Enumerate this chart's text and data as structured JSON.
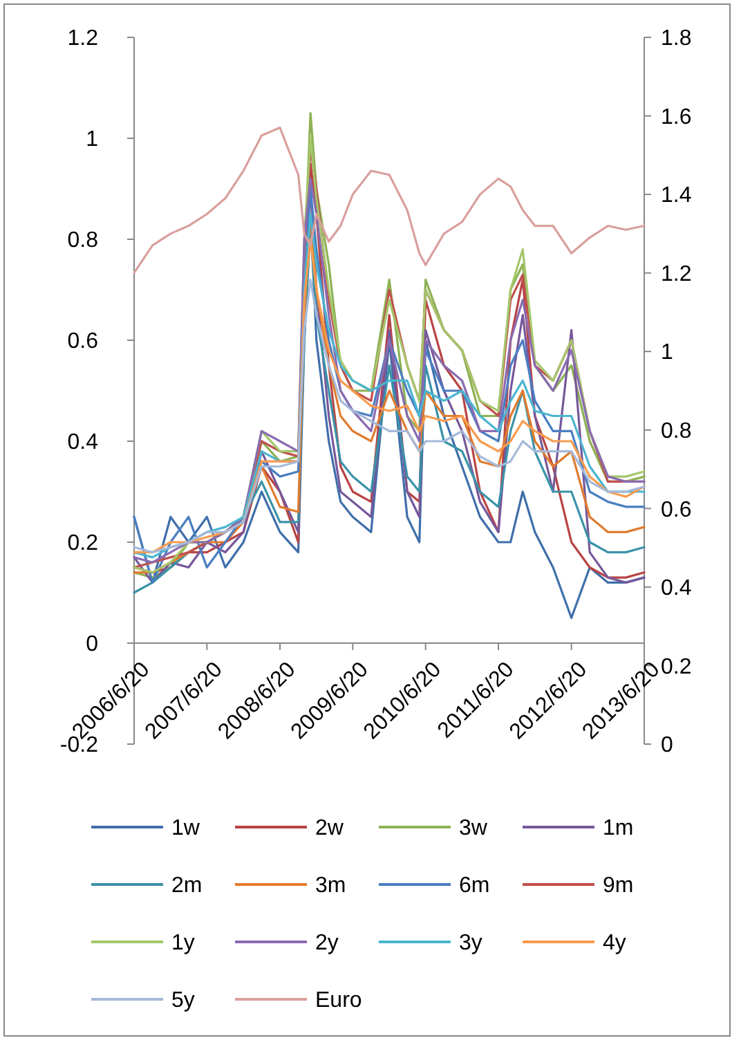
{
  "chart_data": {
    "type": "line",
    "legend": "bottom",
    "x": [
      "2006-06-20",
      "2006-09-20",
      "2006-12-20",
      "2007-03-20",
      "2007-06-20",
      "2007-09-20",
      "2007-12-20",
      "2008-03-20",
      "2008-06-20",
      "2008-09-20",
      "2008-10-20",
      "2008-11-20",
      "2008-12-20",
      "2009-02-20",
      "2009-04-20",
      "2009-06-20",
      "2009-09-20",
      "2009-12-20",
      "2010-03-20",
      "2010-05-20",
      "2010-06-20",
      "2010-09-20",
      "2010-12-20",
      "2011-03-20",
      "2011-06-20",
      "2011-08-20",
      "2011-10-20",
      "2011-12-20",
      "2012-03-20",
      "2012-06-20",
      "2012-09-20",
      "2012-12-20",
      "2013-03-20",
      "2013-06-20"
    ],
    "xlim": [
      "2006-06-20",
      "2013-06-20"
    ],
    "xticks": [
      {
        "value": "2006-06-20",
        "label": "2006/6/20"
      },
      {
        "value": "2007-06-20",
        "label": "2007/6/20"
      },
      {
        "value": "2008-06-20",
        "label": "2008/6/20"
      },
      {
        "value": "2009-06-20",
        "label": "2009/6/20"
      },
      {
        "value": "2010-06-20",
        "label": "2010/6/20"
      },
      {
        "value": "2011-06-20",
        "label": "2011/6/20"
      },
      {
        "value": "2012-06-20",
        "label": "2012/6/20"
      },
      {
        "value": "2013-06-20",
        "label": "2013/6/20"
      }
    ],
    "ylim": [
      -0.2,
      1.2
    ],
    "yticks": [
      -0.2,
      0,
      0.2,
      0.4,
      0.6,
      0.8,
      1,
      1.2
    ],
    "y2lim": [
      0,
      1.8
    ],
    "y2ticks": [
      0,
      0.2,
      0.4,
      0.6,
      0.8,
      1,
      1.2,
      1.4,
      1.6,
      1.8
    ],
    "series": [
      {
        "name": "1w",
        "color": "#3f6faa",
        "values": [
          0.25,
          0.12,
          0.25,
          0.2,
          0.25,
          0.15,
          0.2,
          0.3,
          0.22,
          0.18,
          0.6,
          0.85,
          0.6,
          0.4,
          0.28,
          0.25,
          0.22,
          0.6,
          0.25,
          0.2,
          0.6,
          0.45,
          0.35,
          0.25,
          0.2,
          0.2,
          0.3,
          0.22,
          0.15,
          0.05,
          0.15,
          0.12,
          0.12,
          0.13
        ]
      },
      {
        "name": "2w",
        "color": "#b84444",
        "values": [
          0.15,
          0.14,
          0.15,
          0.18,
          0.18,
          0.2,
          0.22,
          0.35,
          0.3,
          0.2,
          0.7,
          0.95,
          0.85,
          0.55,
          0.35,
          0.3,
          0.28,
          0.65,
          0.3,
          0.28,
          0.68,
          0.55,
          0.5,
          0.3,
          0.22,
          0.6,
          0.72,
          0.45,
          0.35,
          0.2,
          0.15,
          0.13,
          0.13,
          0.14
        ]
      },
      {
        "name": "3w",
        "color": "#8db255",
        "values": [
          0.14,
          0.13,
          0.15,
          0.2,
          0.2,
          0.22,
          0.25,
          0.4,
          0.36,
          0.37,
          0.75,
          1.05,
          0.9,
          0.75,
          0.55,
          0.5,
          0.5,
          0.72,
          0.45,
          0.42,
          0.72,
          0.62,
          0.58,
          0.45,
          0.45,
          0.7,
          0.75,
          0.55,
          0.5,
          0.55,
          0.4,
          0.32,
          0.32,
          0.33
        ]
      },
      {
        "name": "1m",
        "color": "#76589a",
        "values": [
          0.17,
          0.12,
          0.16,
          0.15,
          0.2,
          0.18,
          0.22,
          0.38,
          0.3,
          0.22,
          0.72,
          0.9,
          0.7,
          0.45,
          0.3,
          0.28,
          0.25,
          0.62,
          0.3,
          0.25,
          0.62,
          0.5,
          0.42,
          0.28,
          0.22,
          0.5,
          0.65,
          0.45,
          0.3,
          0.62,
          0.18,
          0.13,
          0.12,
          0.13
        ]
      },
      {
        "name": "2m",
        "color": "#3a92a8",
        "values": [
          0.1,
          0.12,
          0.15,
          0.18,
          0.2,
          0.22,
          0.25,
          0.32,
          0.24,
          0.24,
          0.6,
          0.82,
          0.65,
          0.5,
          0.36,
          0.33,
          0.3,
          0.55,
          0.33,
          0.3,
          0.55,
          0.4,
          0.38,
          0.3,
          0.27,
          0.42,
          0.5,
          0.38,
          0.3,
          0.3,
          0.2,
          0.18,
          0.18,
          0.19
        ]
      },
      {
        "name": "3m",
        "color": "#e07b2e",
        "values": [
          0.14,
          0.14,
          0.16,
          0.18,
          0.2,
          0.2,
          0.24,
          0.35,
          0.27,
          0.26,
          0.65,
          0.85,
          0.7,
          0.55,
          0.45,
          0.42,
          0.4,
          0.5,
          0.42,
          0.38,
          0.5,
          0.45,
          0.45,
          0.36,
          0.35,
          0.45,
          0.5,
          0.4,
          0.35,
          0.38,
          0.25,
          0.22,
          0.22,
          0.23
        ]
      },
      {
        "name": "6m",
        "color": "#4a7ec0",
        "values": [
          0.25,
          0.12,
          0.2,
          0.25,
          0.15,
          0.2,
          0.25,
          0.36,
          0.33,
          0.34,
          0.72,
          0.9,
          0.78,
          0.6,
          0.5,
          0.46,
          0.45,
          0.6,
          0.5,
          0.45,
          0.58,
          0.5,
          0.5,
          0.42,
          0.4,
          0.55,
          0.6,
          0.48,
          0.42,
          0.42,
          0.3,
          0.28,
          0.27,
          0.27
        ]
      },
      {
        "name": "9m",
        "color": "#c0504d",
        "values": [
          0.15,
          0.16,
          0.17,
          0.18,
          0.2,
          0.22,
          0.25,
          0.4,
          0.38,
          0.37,
          0.78,
          0.98,
          0.9,
          0.68,
          0.55,
          0.5,
          0.48,
          0.7,
          0.55,
          0.48,
          0.7,
          0.62,
          0.58,
          0.48,
          0.45,
          0.68,
          0.73,
          0.55,
          0.52,
          0.6,
          0.42,
          0.32,
          0.32,
          0.32
        ]
      },
      {
        "name": "1y",
        "color": "#a5c66b",
        "values": [
          0.15,
          0.14,
          0.16,
          0.2,
          0.2,
          0.22,
          0.25,
          0.42,
          0.38,
          0.38,
          0.8,
          1.0,
          0.88,
          0.7,
          0.56,
          0.52,
          0.5,
          0.68,
          0.55,
          0.48,
          0.7,
          0.62,
          0.58,
          0.48,
          0.46,
          0.7,
          0.78,
          0.56,
          0.52,
          0.6,
          0.42,
          0.33,
          0.33,
          0.34
        ]
      },
      {
        "name": "2y",
        "color": "#8a6bb0",
        "values": [
          0.17,
          0.16,
          0.18,
          0.2,
          0.2,
          0.22,
          0.25,
          0.42,
          0.4,
          0.38,
          0.8,
          0.92,
          0.85,
          0.65,
          0.5,
          0.46,
          0.42,
          0.6,
          0.45,
          0.4,
          0.6,
          0.55,
          0.52,
          0.42,
          0.42,
          0.6,
          0.68,
          0.55,
          0.5,
          0.58,
          0.42,
          0.33,
          0.32,
          0.32
        ]
      },
      {
        "name": "3y",
        "color": "#4bb5d0",
        "values": [
          0.18,
          0.17,
          0.19,
          0.2,
          0.22,
          0.23,
          0.25,
          0.38,
          0.36,
          0.36,
          0.7,
          0.85,
          0.75,
          0.62,
          0.55,
          0.52,
          0.5,
          0.52,
          0.52,
          0.45,
          0.5,
          0.48,
          0.5,
          0.45,
          0.42,
          0.48,
          0.52,
          0.46,
          0.45,
          0.45,
          0.35,
          0.3,
          0.3,
          0.3
        ]
      },
      {
        "name": "4y",
        "color": "#f89b4e",
        "values": [
          0.18,
          0.18,
          0.2,
          0.2,
          0.21,
          0.22,
          0.24,
          0.36,
          0.36,
          0.36,
          0.68,
          0.8,
          0.7,
          0.58,
          0.52,
          0.5,
          0.47,
          0.46,
          0.47,
          0.42,
          0.45,
          0.44,
          0.45,
          0.4,
          0.38,
          0.4,
          0.44,
          0.42,
          0.4,
          0.4,
          0.33,
          0.3,
          0.29,
          0.31
        ]
      },
      {
        "name": "5y",
        "color": "#a5b9da",
        "values": [
          0.19,
          0.18,
          0.19,
          0.2,
          0.22,
          0.22,
          0.24,
          0.35,
          0.35,
          0.36,
          0.62,
          0.72,
          0.65,
          0.55,
          0.48,
          0.46,
          0.44,
          0.42,
          0.42,
          0.38,
          0.4,
          0.4,
          0.42,
          0.37,
          0.35,
          0.36,
          0.4,
          0.38,
          0.38,
          0.38,
          0.32,
          0.3,
          0.3,
          0.31
        ]
      },
      {
        "name": "Euro",
        "color": "#d9a09e",
        "axis": "y2",
        "values": [
          1.2,
          1.27,
          1.3,
          1.32,
          1.35,
          1.39,
          1.46,
          1.55,
          1.57,
          1.45,
          1.3,
          1.27,
          1.35,
          1.28,
          1.32,
          1.4,
          1.46,
          1.45,
          1.36,
          1.25,
          1.22,
          1.3,
          1.33,
          1.4,
          1.44,
          1.42,
          1.36,
          1.32,
          1.32,
          1.25,
          1.29,
          1.32,
          1.31,
          1.32
        ]
      }
    ]
  }
}
